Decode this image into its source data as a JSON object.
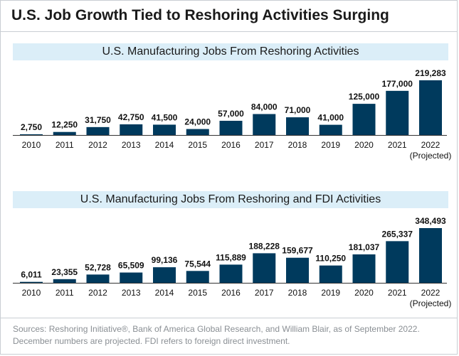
{
  "title": "U.S. Job Growth Tied to Reshoring Activities Surging",
  "footnote": "Sources: Reshoring Initiative®, Bank of America Global Research, and William Blair, as of September 2022. December numbers are projected. FDI refers to foreign direct investment.",
  "colors": {
    "bar": "#003a5d",
    "band": "#dbeef8"
  },
  "chart_data": [
    {
      "type": "bar",
      "title": "U.S. Manufacturing Jobs From Reshoring Activities",
      "categories": [
        "2010",
        "2011",
        "2012",
        "2013",
        "2014",
        "2015",
        "2016",
        "2017",
        "2018",
        "2019",
        "2020",
        "2021",
        "2022"
      ],
      "category_notes": [
        "",
        "",
        "",
        "",
        "",
        "",
        "",
        "",
        "",
        "",
        "",
        "",
        "(Projected)"
      ],
      "values": [
        2750,
        12250,
        31750,
        42750,
        41500,
        24000,
        57000,
        84000,
        71000,
        41000,
        125000,
        177000,
        219283
      ],
      "value_labels": [
        "2,750",
        "12,250",
        "31,750",
        "42,750",
        "41,500",
        "24,000",
        "57,000",
        "84,000",
        "71,000",
        "41,000",
        "125,000",
        "177,000",
        "219,283"
      ],
      "ylim": [
        0,
        219283
      ],
      "grid": false
    },
    {
      "type": "bar",
      "title": "U.S. Manufacturing Jobs From Reshoring and FDI Activities",
      "categories": [
        "2010",
        "2011",
        "2012",
        "2013",
        "2014",
        "2015",
        "2016",
        "2017",
        "2018",
        "2019",
        "2020",
        "2021",
        "2022"
      ],
      "category_notes": [
        "",
        "",
        "",
        "",
        "",
        "",
        "",
        "",
        "",
        "",
        "",
        "",
        "(Projected)"
      ],
      "values": [
        6011,
        23355,
        52728,
        65509,
        99136,
        75544,
        115889,
        188228,
        159677,
        110250,
        181037,
        265337,
        348493
      ],
      "value_labels": [
        "6,011",
        "23,355",
        "52,728",
        "65,509",
        "99,136",
        "75,544",
        "115,889",
        "188,228",
        "159,677",
        "110,250",
        "181,037",
        "265,337",
        "348,493"
      ],
      "ylim": [
        0,
        348493
      ],
      "grid": false
    }
  ]
}
